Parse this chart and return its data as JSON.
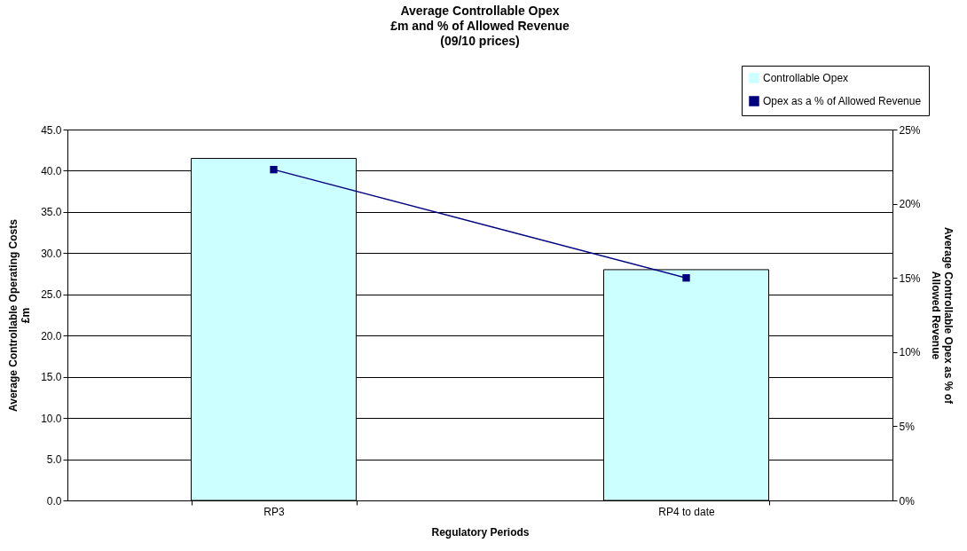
{
  "chart_data": {
    "type": "bar",
    "title": "Average Controllable Opex\n£m and % of Allowed Revenue\n(09/10 prices)",
    "xlabel": "Regulatory Periods",
    "ylabel": "Average Controllable Operating Costs\n£m",
    "y2label": "Average Controllable Opex as % of\nAllowed Revenue",
    "categories": [
      "RP3",
      "RP4 to date"
    ],
    "series": [
      {
        "name": "Controllable Opex",
        "color": "#ccffff",
        "values": [
          41.5,
          28.0
        ]
      },
      {
        "name": "Opex as a % of Allowed Revenue",
        "type": "line",
        "axis": "y2",
        "color": "#000080",
        "values": [
          22.3,
          15.0
        ]
      }
    ],
    "ylim": [
      0,
      45
    ],
    "yticks": [
      {
        "value": 0,
        "label": "0.0"
      },
      {
        "value": 5,
        "label": "5.0"
      },
      {
        "value": 10,
        "label": "10.0"
      },
      {
        "value": 15,
        "label": "15.0"
      },
      {
        "value": 20,
        "label": "20.0"
      },
      {
        "value": 25,
        "label": "25.0"
      },
      {
        "value": 30,
        "label": "30.0"
      },
      {
        "value": 35,
        "label": "35.0"
      },
      {
        "value": 40,
        "label": "40.0"
      },
      {
        "value": 45,
        "label": "45.0"
      }
    ],
    "y2lim": [
      0,
      25
    ],
    "y2ticks": [
      {
        "value": 0,
        "label": "0%"
      },
      {
        "value": 5,
        "label": "5%"
      },
      {
        "value": 10,
        "label": "10%"
      },
      {
        "value": 15,
        "label": "15%"
      },
      {
        "value": 20,
        "label": "20%"
      },
      {
        "value": 25,
        "label": "25%"
      }
    ],
    "grid": "y",
    "legend": "top right",
    "marker": "square",
    "line_style": "solid"
  }
}
